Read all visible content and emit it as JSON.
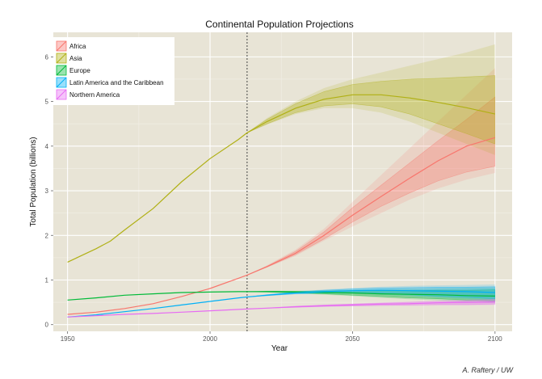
{
  "chart_data": {
    "type": "line",
    "title": "Continental Population Projections",
    "xlabel": "Year",
    "ylabel": "Total Population (billions)",
    "xlim": [
      1945,
      2106
    ],
    "ylim": [
      -0.15,
      6.55
    ],
    "xticks": [
      1950,
      2000,
      2050,
      2100
    ],
    "yticks": [
      0,
      1,
      2,
      3,
      4,
      5,
      6
    ],
    "grid": true,
    "legend_position": "top-left",
    "projection_start_year": 2013,
    "series": [
      {
        "name": "Africa",
        "color": "#F8766D",
        "x": [
          1950,
          1960,
          1970,
          1980,
          1990,
          2000,
          2010,
          2013,
          2020,
          2030,
          2040,
          2050,
          2060,
          2070,
          2080,
          2090,
          2100
        ],
        "values": [
          0.23,
          0.28,
          0.36,
          0.47,
          0.63,
          0.81,
          1.04,
          1.11,
          1.3,
          1.6,
          2.0,
          2.45,
          2.87,
          3.28,
          3.67,
          4.0,
          4.19
        ],
        "band_x": [
          2013,
          2020,
          2030,
          2040,
          2050,
          2060,
          2070,
          2080,
          2090,
          2100
        ],
        "band80_low": [
          1.11,
          1.29,
          1.57,
          1.92,
          2.3,
          2.65,
          2.95,
          3.22,
          3.42,
          3.55
        ],
        "band80_high": [
          1.11,
          1.31,
          1.64,
          2.08,
          2.62,
          3.12,
          3.62,
          4.12,
          4.6,
          5.1
        ],
        "band95_low": [
          1.11,
          1.28,
          1.54,
          1.88,
          2.2,
          2.5,
          2.8,
          3.05,
          3.25,
          3.4
        ],
        "band95_high": [
          1.11,
          1.33,
          1.68,
          2.15,
          2.75,
          3.35,
          3.95,
          4.55,
          5.15,
          5.75
        ]
      },
      {
        "name": "Asia",
        "color": "#B0B015",
        "x": [
          1950,
          1955,
          1960,
          1965,
          1970,
          1980,
          1990,
          2000,
          2010,
          2013,
          2020,
          2030,
          2040,
          2050,
          2060,
          2070,
          2080,
          2090,
          2100
        ],
        "values": [
          1.4,
          1.55,
          1.7,
          1.87,
          2.12,
          2.6,
          3.2,
          3.72,
          4.15,
          4.3,
          4.55,
          4.85,
          5.05,
          5.15,
          5.15,
          5.08,
          4.98,
          4.86,
          4.72
        ],
        "band_x": [
          2013,
          2020,
          2030,
          2040,
          2050,
          2060,
          2070,
          2080,
          2090,
          2100
        ],
        "band80_low": [
          4.3,
          4.5,
          4.75,
          4.9,
          4.95,
          4.88,
          4.72,
          4.5,
          4.28,
          4.05
        ],
        "band80_high": [
          4.3,
          4.6,
          4.95,
          5.22,
          5.38,
          5.45,
          5.5,
          5.52,
          5.55,
          5.58
        ],
        "band95_low": [
          4.3,
          4.48,
          4.72,
          4.85,
          4.85,
          4.75,
          4.55,
          4.3,
          4.05,
          3.8
        ],
        "band95_high": [
          4.3,
          4.63,
          5.0,
          5.3,
          5.5,
          5.65,
          5.8,
          5.95,
          6.1,
          6.28
        ]
      },
      {
        "name": "Europe",
        "color": "#00BA38",
        "x": [
          1950,
          1960,
          1970,
          1980,
          1990,
          2000,
          2010,
          2013,
          2020,
          2030,
          2040,
          2050,
          2060,
          2070,
          2080,
          2090,
          2100
        ],
        "values": [
          0.55,
          0.6,
          0.66,
          0.69,
          0.72,
          0.73,
          0.74,
          0.74,
          0.74,
          0.73,
          0.72,
          0.71,
          0.69,
          0.68,
          0.67,
          0.65,
          0.64
        ],
        "band_x": [
          2013,
          2020,
          2030,
          2040,
          2050,
          2060,
          2070,
          2080,
          2090,
          2100
        ],
        "band80_low": [
          0.74,
          0.73,
          0.71,
          0.69,
          0.66,
          0.63,
          0.6,
          0.58,
          0.55,
          0.53
        ],
        "band80_high": [
          0.74,
          0.75,
          0.75,
          0.75,
          0.76,
          0.76,
          0.76,
          0.77,
          0.77,
          0.78
        ],
        "band95_low": [
          0.74,
          0.73,
          0.7,
          0.67,
          0.64,
          0.6,
          0.57,
          0.54,
          0.51,
          0.48
        ],
        "band95_high": [
          0.74,
          0.76,
          0.76,
          0.77,
          0.78,
          0.79,
          0.8,
          0.81,
          0.82,
          0.83
        ]
      },
      {
        "name": "Latin America and the Caribbean",
        "color": "#00B0F6",
        "x": [
          1950,
          1960,
          1970,
          1980,
          1990,
          2000,
          2010,
          2013,
          2020,
          2030,
          2040,
          2050,
          2060,
          2070,
          2080,
          2090,
          2100
        ],
        "values": [
          0.17,
          0.22,
          0.29,
          0.36,
          0.44,
          0.52,
          0.6,
          0.62,
          0.66,
          0.71,
          0.74,
          0.76,
          0.77,
          0.76,
          0.75,
          0.74,
          0.72
        ],
        "band_x": [
          2013,
          2020,
          2030,
          2040,
          2050,
          2060,
          2070,
          2080,
          2090,
          2100
        ],
        "band80_low": [
          0.62,
          0.65,
          0.69,
          0.71,
          0.71,
          0.7,
          0.67,
          0.64,
          0.61,
          0.58
        ],
        "band80_high": [
          0.62,
          0.67,
          0.73,
          0.77,
          0.8,
          0.82,
          0.83,
          0.84,
          0.84,
          0.85
        ],
        "band95_low": [
          0.62,
          0.64,
          0.68,
          0.7,
          0.69,
          0.67,
          0.64,
          0.6,
          0.57,
          0.54
        ],
        "band95_high": [
          0.62,
          0.68,
          0.74,
          0.79,
          0.82,
          0.85,
          0.87,
          0.88,
          0.89,
          0.9
        ]
      },
      {
        "name": "Northern America",
        "color": "#E76BF3",
        "x": [
          1950,
          1960,
          1970,
          1980,
          1990,
          2000,
          2010,
          2013,
          2020,
          2030,
          2040,
          2050,
          2060,
          2070,
          2080,
          2090,
          2100
        ],
        "values": [
          0.17,
          0.2,
          0.23,
          0.25,
          0.28,
          0.31,
          0.34,
          0.35,
          0.37,
          0.4,
          0.42,
          0.44,
          0.46,
          0.47,
          0.49,
          0.5,
          0.51
        ],
        "band_x": [
          2013,
          2020,
          2030,
          2040,
          2050,
          2060,
          2070,
          2080,
          2090,
          2100
        ],
        "band80_low": [
          0.35,
          0.37,
          0.39,
          0.41,
          0.42,
          0.43,
          0.44,
          0.45,
          0.45,
          0.46
        ],
        "band80_high": [
          0.35,
          0.37,
          0.41,
          0.44,
          0.46,
          0.48,
          0.5,
          0.52,
          0.54,
          0.56
        ],
        "band95_low": [
          0.35,
          0.36,
          0.38,
          0.4,
          0.41,
          0.42,
          0.42,
          0.43,
          0.43,
          0.44
        ],
        "band95_high": [
          0.35,
          0.38,
          0.42,
          0.45,
          0.47,
          0.5,
          0.52,
          0.54,
          0.56,
          0.59
        ]
      }
    ]
  },
  "credit": "A. Raftery / UW"
}
